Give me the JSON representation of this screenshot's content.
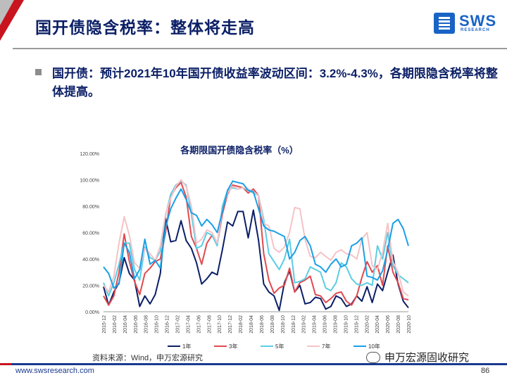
{
  "slide": {
    "title": "国开债隐含税率：整体将走高",
    "body": "国开债：预计2021年10年国开债收益率波动区间：3.2%-4.3%，各期限隐含税率将整体提高。",
    "source": "资料来源：Wind，申万宏源研究",
    "website": "www.swsresearch.com",
    "page_number": "86",
    "watermark": "申万宏源固收研究"
  },
  "logo": {
    "name": "SWS",
    "sub": "RESEARCH"
  },
  "colors": {
    "brand_red": "#c8141e",
    "brand_navy": "#0b1f66",
    "brand_blue": "#1a63c6"
  },
  "chart_data": {
    "type": "line",
    "title": "各期限国开债隐含税率（%）",
    "ylim": [
      0,
      1.2
    ],
    "y_ticks": [
      "0.00%",
      "20.00%",
      "40.00%",
      "60.00%",
      "80.00%",
      "100.00%",
      "120.00%"
    ],
    "x_ticks": [
      "2015-12",
      "2016-02",
      "2016-04",
      "2016-06",
      "2016-08",
      "2016-10",
      "2016-12",
      "2017-02",
      "2017-04",
      "2017-06",
      "2017-08",
      "2017-10",
      "2017-12",
      "2018-02",
      "2018-04",
      "2018-06",
      "2018-08",
      "2018-10",
      "2018-12",
      "2019-02",
      "2019-04",
      "2019-06",
      "2019-08",
      "2019-10",
      "2019-12",
      "2020-02",
      "2020-04",
      "2020-06",
      "2020-08",
      "2020-10"
    ],
    "series": [
      {
        "name": "1年",
        "color": "#0b1f66",
        "values": [
          0.19,
          0.05,
          0.15,
          0.22,
          0.41,
          0.29,
          0.24,
          0.04,
          0.12,
          0.06,
          0.13,
          0.29,
          0.71,
          0.53,
          0.54,
          0.69,
          0.54,
          0.48,
          0.37,
          0.21,
          0.25,
          0.3,
          0.28,
          0.47,
          0.68,
          0.65,
          0.76,
          0.76,
          0.56,
          0.77,
          0.54,
          0.21,
          0.15,
          0.12,
          0.01,
          0.22,
          0.31,
          0.15,
          0.2,
          0.06,
          0.07,
          0.11,
          0.1,
          0.02,
          0.04,
          0.12,
          0.1,
          0.04,
          0.06,
          0.12,
          0.08,
          0.19,
          0.07,
          0.21,
          0.16,
          0.3,
          0.43,
          0.21,
          0.08,
          0.03
        ]
      },
      {
        "name": "3年",
        "color": "#e04a4f",
        "values": [
          0.12,
          0.05,
          0.12,
          0.3,
          0.59,
          0.38,
          0.23,
          0.13,
          0.29,
          0.33,
          0.38,
          0.4,
          0.6,
          0.87,
          0.94,
          0.98,
          0.87,
          0.57,
          0.48,
          0.36,
          0.52,
          0.58,
          0.51,
          0.74,
          0.89,
          0.96,
          0.95,
          0.94,
          0.9,
          0.93,
          0.88,
          0.44,
          0.24,
          0.14,
          0.18,
          0.2,
          0.33,
          0.15,
          0.22,
          0.24,
          0.27,
          0.13,
          0.12,
          0.07,
          0.1,
          0.14,
          0.15,
          0.08,
          0.05,
          0.12,
          0.26,
          0.38,
          0.3,
          0.35,
          0.2,
          0.5,
          0.3,
          0.22,
          0.1,
          0.09
        ]
      },
      {
        "name": "5年",
        "color": "#5ccde3",
        "values": [
          0.22,
          0.12,
          0.22,
          0.36,
          0.52,
          0.52,
          0.32,
          0.24,
          0.49,
          0.41,
          0.39,
          0.46,
          0.73,
          0.89,
          0.96,
          0.99,
          0.96,
          0.74,
          0.48,
          0.5,
          0.6,
          0.58,
          0.5,
          0.8,
          0.92,
          0.94,
          0.93,
          0.94,
          0.92,
          0.9,
          0.88,
          0.7,
          0.44,
          0.38,
          0.32,
          0.4,
          0.55,
          0.22,
          0.23,
          0.25,
          0.34,
          0.32,
          0.3,
          0.18,
          0.16,
          0.22,
          0.37,
          0.34,
          0.25,
          0.21,
          0.2,
          0.22,
          0.2,
          0.5,
          0.4,
          0.6,
          0.35,
          0.28,
          0.25,
          0.22
        ]
      },
      {
        "name": "7年",
        "color": "#f5c3c6",
        "values": [
          0.2,
          0.15,
          0.27,
          0.52,
          0.72,
          0.58,
          0.37,
          0.33,
          0.48,
          0.44,
          0.39,
          0.5,
          0.74,
          0.86,
          0.95,
          1.0,
          0.95,
          0.8,
          0.52,
          0.55,
          0.62,
          0.6,
          0.52,
          0.77,
          0.9,
          0.95,
          0.93,
          0.94,
          0.93,
          0.91,
          0.88,
          0.67,
          0.65,
          0.48,
          0.45,
          0.49,
          0.6,
          0.79,
          0.78,
          0.55,
          0.42,
          0.41,
          0.45,
          0.42,
          0.39,
          0.45,
          0.47,
          0.44,
          0.43,
          0.4,
          0.55,
          0.6,
          0.35,
          0.32,
          0.45,
          0.67,
          0.38,
          0.3,
          0.15,
          0.12
        ]
      },
      {
        "name": "10年",
        "color": "#1aa0e6",
        "values": [
          0.34,
          0.29,
          0.18,
          0.21,
          0.52,
          0.45,
          0.25,
          0.32,
          0.55,
          0.36,
          0.39,
          0.33,
          0.64,
          0.78,
          0.86,
          0.93,
          0.85,
          0.75,
          0.73,
          0.65,
          0.7,
          0.66,
          0.6,
          0.76,
          0.92,
          0.99,
          0.98,
          0.97,
          0.92,
          0.91,
          0.78,
          0.65,
          0.62,
          0.61,
          0.59,
          0.57,
          0.4,
          0.45,
          0.54,
          0.57,
          0.5,
          0.36,
          0.34,
          0.3,
          0.36,
          0.4,
          0.34,
          0.36,
          0.5,
          0.52,
          0.56,
          0.27,
          0.26,
          0.24,
          0.31,
          0.47,
          0.67,
          0.7,
          0.63,
          0.5
        ]
      }
    ]
  }
}
